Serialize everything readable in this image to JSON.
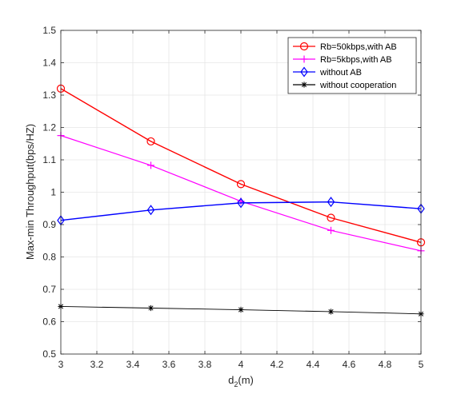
{
  "chart_data": {
    "type": "line",
    "title": "",
    "xlabel_main": "d",
    "xlabel_sub": "2",
    "xlabel_suffix": "(m)",
    "ylabel": "Max-min Throughput(bps/HZ)",
    "xlim": [
      3,
      5
    ],
    "ylim": [
      0.5,
      1.5
    ],
    "xticks": [
      3,
      3.2,
      3.4,
      3.6,
      3.8,
      4,
      4.2,
      4.4,
      4.6,
      4.8,
      5
    ],
    "xtick_labels": [
      "3",
      "3.2",
      "3.4",
      "3.6",
      "3.8",
      "4",
      "4.2",
      "4.4",
      "4.6",
      "4.8",
      "5"
    ],
    "yticks": [
      0.5,
      0.6,
      0.7,
      0.8,
      0.9,
      1.0,
      1.1,
      1.2,
      1.3,
      1.4,
      1.5
    ],
    "ytick_labels": [
      "0.5",
      "0.6",
      "0.7",
      "0.8",
      "0.9",
      "1",
      "1.1",
      "1.2",
      "1.3",
      "1.4",
      "1.5"
    ],
    "grid": true,
    "legend_position": "top-right",
    "series": [
      {
        "name": "Rb=50kbps,with AB",
        "color": "#ff0000",
        "marker": "circle",
        "x": [
          3,
          3.5,
          4,
          4.5,
          5
        ],
        "y": [
          1.32,
          1.157,
          1.025,
          0.921,
          0.845
        ]
      },
      {
        "name": "Rb=5kbps,with AB",
        "color": "#ff00ff",
        "marker": "plus",
        "x": [
          3,
          3.5,
          4,
          4.5,
          5
        ],
        "y": [
          1.175,
          1.083,
          0.972,
          0.882,
          0.819
        ]
      },
      {
        "name": "without AB",
        "color": "#0000ff",
        "marker": "diamond",
        "x": [
          3,
          3.5,
          4,
          4.5,
          5
        ],
        "y": [
          0.913,
          0.945,
          0.967,
          0.97,
          0.949
        ]
      },
      {
        "name": "without cooperation",
        "color": "#000000",
        "marker": "asterisk",
        "x": [
          3,
          3.5,
          4,
          4.5,
          5
        ],
        "y": [
          0.647,
          0.642,
          0.637,
          0.631,
          0.624
        ]
      }
    ]
  }
}
